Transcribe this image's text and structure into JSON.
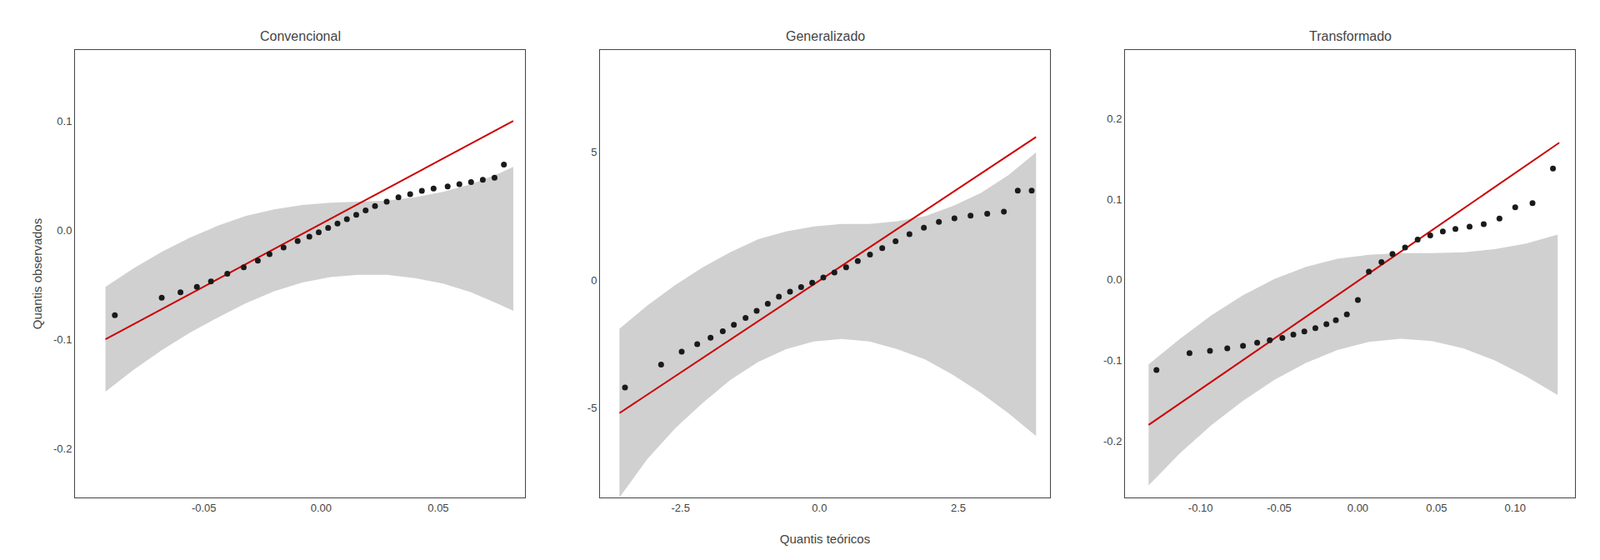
{
  "chart_data": [
    {
      "type": "scatter",
      "title": "Convencional",
      "ylabel": "Quantis observados",
      "grid": false,
      "xlim": [
        -0.105,
        0.087
      ],
      "ylim": [
        -0.245,
        0.165
      ],
      "xticks": [
        -0.05,
        {
          "value": 0,
          "label": "0.00"
        },
        0.05
      ],
      "yticks": [
        -0.2,
        -0.1,
        {
          "value": 0,
          "label": "0.0"
        },
        0.1
      ],
      "series": [
        {
          "type": "area",
          "color": "#d0d0d0",
          "x": [
            -0.092,
            -0.08,
            -0.068,
            -0.056,
            -0.044,
            -0.032,
            -0.02,
            -0.008,
            0.004,
            0.016,
            0.028,
            0.04,
            0.052,
            0.064,
            0.076,
            0.082
          ],
          "lower": [
            -0.148,
            -0.128,
            -0.11,
            -0.094,
            -0.08,
            -0.067,
            -0.056,
            -0.048,
            -0.043,
            -0.041,
            -0.041,
            -0.044,
            -0.049,
            -0.057,
            -0.068,
            -0.074
          ],
          "upper": [
            -0.052,
            -0.035,
            -0.02,
            -0.007,
            0.004,
            0.013,
            0.019,
            0.023,
            0.025,
            0.026,
            0.027,
            0.03,
            0.035,
            0.042,
            0.052,
            0.058
          ]
        },
        {
          "type": "line",
          "color": "#CC0000",
          "x": [
            -0.092,
            0.082
          ],
          "values": [
            -0.1,
            0.1
          ]
        },
        {
          "type": "scatter",
          "color": "#1a1a1a",
          "x": [
            -0.088,
            -0.068,
            -0.06,
            -0.053,
            -0.047,
            -0.04,
            -0.033,
            -0.027,
            -0.022,
            -0.016,
            -0.01,
            -0.005,
            -0.001,
            0.003,
            0.007,
            0.011,
            0.015,
            0.019,
            0.023,
            0.028,
            0.033,
            0.038,
            0.043,
            0.048,
            0.054,
            0.059,
            0.064,
            0.069,
            0.074,
            0.078
          ],
          "values": [
            -0.078,
            -0.062,
            -0.057,
            -0.052,
            -0.047,
            -0.04,
            -0.034,
            -0.028,
            -0.022,
            -0.016,
            -0.01,
            -0.006,
            -0.002,
            0.002,
            0.006,
            0.01,
            0.014,
            0.018,
            0.022,
            0.026,
            0.03,
            0.033,
            0.036,
            0.038,
            0.04,
            0.042,
            0.044,
            0.046,
            0.048,
            0.06
          ]
        }
      ]
    },
    {
      "type": "scatter",
      "title": "Generalizado",
      "xlabel": "Quantis teóricos",
      "grid": false,
      "xlim": [
        -3.95,
        4.15
      ],
      "ylim": [
        -8.5,
        9.0
      ],
      "xticks": [
        -2.5,
        {
          "value": 0,
          "label": "0.0"
        },
        2.5
      ],
      "yticks": [
        -5,
        0,
        5
      ],
      "series": [
        {
          "type": "area",
          "color": "#d0d0d0",
          "x": [
            -3.6,
            -3.1,
            -2.6,
            -2.1,
            -1.6,
            -1.1,
            -0.6,
            -0.1,
            0.4,
            0.9,
            1.4,
            1.9,
            2.4,
            2.9,
            3.4,
            3.9
          ],
          "lower": [
            -8.5,
            -7.0,
            -5.8,
            -4.8,
            -3.9,
            -3.2,
            -2.7,
            -2.4,
            -2.3,
            -2.4,
            -2.7,
            -3.1,
            -3.7,
            -4.4,
            -5.2,
            -6.1
          ],
          "upper": [
            -1.9,
            -1.0,
            -0.2,
            0.5,
            1.1,
            1.6,
            1.9,
            2.1,
            2.2,
            2.2,
            2.3,
            2.5,
            2.9,
            3.4,
            4.1,
            5.0
          ]
        },
        {
          "type": "line",
          "color": "#CC0000",
          "x": [
            -3.6,
            3.9
          ],
          "values": [
            -5.2,
            5.6
          ]
        },
        {
          "type": "scatter",
          "color": "#1a1a1a",
          "x": [
            -3.5,
            -2.85,
            -2.48,
            -2.2,
            -1.96,
            -1.74,
            -1.54,
            -1.33,
            -1.13,
            -0.93,
            -0.73,
            -0.53,
            -0.33,
            -0.13,
            0.07,
            0.27,
            0.48,
            0.69,
            0.91,
            1.13,
            1.37,
            1.62,
            1.88,
            2.15,
            2.43,
            2.72,
            3.02,
            3.32,
            3.57,
            3.82
          ],
          "values": [
            -4.2,
            -3.3,
            -2.8,
            -2.5,
            -2.25,
            -2.0,
            -1.75,
            -1.48,
            -1.2,
            -0.92,
            -0.65,
            -0.45,
            -0.27,
            -0.1,
            0.1,
            0.3,
            0.5,
            0.75,
            1.0,
            1.25,
            1.52,
            1.8,
            2.05,
            2.28,
            2.42,
            2.52,
            2.6,
            2.68,
            3.5,
            3.5
          ]
        }
      ]
    },
    {
      "type": "scatter",
      "title": "Transformado",
      "grid": false,
      "xlim": [
        -0.148,
        0.138
      ],
      "ylim": [
        -0.27,
        0.285
      ],
      "xticks": [
        {
          "value": -0.1,
          "label": "-0.10"
        },
        -0.05,
        {
          "value": 0,
          "label": "0.00"
        },
        0.05,
        {
          "value": 0.1,
          "label": "0.10"
        }
      ],
      "yticks": [
        -0.2,
        -0.1,
        {
          "value": 0,
          "label": "0.0"
        },
        0.1,
        0.2
      ],
      "series": [
        {
          "type": "area",
          "color": "#d0d0d0",
          "x": [
            -0.133,
            -0.113,
            -0.093,
            -0.073,
            -0.053,
            -0.033,
            -0.013,
            0.007,
            0.027,
            0.047,
            0.067,
            0.087,
            0.107,
            0.127
          ],
          "lower": [
            -0.255,
            -0.215,
            -0.18,
            -0.15,
            -0.124,
            -0.103,
            -0.087,
            -0.077,
            -0.073,
            -0.076,
            -0.085,
            -0.1,
            -0.12,
            -0.143
          ],
          "upper": [
            -0.105,
            -0.073,
            -0.044,
            -0.019,
            0.001,
            0.016,
            0.026,
            0.031,
            0.033,
            0.033,
            0.034,
            0.038,
            0.045,
            0.056
          ]
        },
        {
          "type": "line",
          "color": "#CC0000",
          "x": [
            -0.133,
            0.128
          ],
          "values": [
            -0.18,
            0.17
          ]
        },
        {
          "type": "scatter",
          "color": "#1a1a1a",
          "x": [
            -0.128,
            -0.107,
            -0.094,
            -0.083,
            -0.073,
            -0.064,
            -0.056,
            -0.048,
            -0.041,
            -0.034,
            -0.027,
            -0.02,
            -0.014,
            -0.007,
            0.0,
            0.007,
            0.015,
            0.022,
            0.03,
            0.038,
            0.046,
            0.054,
            0.062,
            0.071,
            0.08,
            0.09,
            0.1,
            0.111,
            0.124
          ],
          "values": [
            -0.112,
            -0.091,
            -0.088,
            -0.085,
            -0.082,
            -0.078,
            -0.075,
            -0.072,
            -0.068,
            -0.064,
            -0.06,
            -0.055,
            -0.05,
            -0.043,
            -0.025,
            0.01,
            0.022,
            0.032,
            0.04,
            0.05,
            0.055,
            0.06,
            0.063,
            0.066,
            0.069,
            0.076,
            0.09,
            0.095,
            0.138
          ]
        }
      ]
    }
  ]
}
